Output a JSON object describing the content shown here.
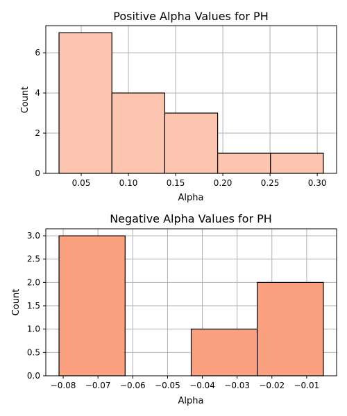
{
  "chart_data": [
    {
      "type": "bar",
      "title": "Positive Alpha Values for PH",
      "xlabel": "Alpha",
      "ylabel": "Count",
      "bin_edges": [
        0.0265,
        0.0825,
        0.1385,
        0.1945,
        0.2505,
        0.3065
      ],
      "values": [
        7,
        4,
        3,
        1,
        1
      ],
      "xlim": [
        0.0125,
        0.3205
      ],
      "ylim": [
        0,
        7.35
      ],
      "xticks": [
        0.05,
        0.1,
        0.15,
        0.2,
        0.25,
        0.3
      ],
      "xtick_labels": [
        "0.05",
        "0.10",
        "0.15",
        "0.20",
        "0.25",
        "0.30"
      ],
      "yticks": [
        0,
        2,
        4,
        6
      ],
      "ytick_labels": [
        "0",
        "2",
        "4",
        "6"
      ],
      "grid": true,
      "bar_color": "#fcc5b0",
      "edge_color": "#000000",
      "grid_color": "#b0b0b0"
    },
    {
      "type": "bar",
      "title": "Negative Alpha Values for PH",
      "xlabel": "Alpha",
      "ylabel": "Count",
      "bin_edges": [
        -0.0812,
        -0.0622,
        -0.0432,
        -0.0242,
        -0.0052
      ],
      "values": [
        3,
        0,
        1,
        2
      ],
      "xlim": [
        -0.085,
        -0.0014
      ],
      "ylim": [
        0,
        3.15
      ],
      "xticks": [
        -0.08,
        -0.07,
        -0.06,
        -0.05,
        -0.04,
        -0.03,
        -0.02,
        -0.01
      ],
      "xtick_labels": [
        "−0.08",
        "−0.07",
        "−0.06",
        "−0.05",
        "−0.04",
        "−0.03",
        "−0.02",
        "−0.01"
      ],
      "yticks": [
        0,
        0.5,
        1.0,
        1.5,
        2.0,
        2.5,
        3.0
      ],
      "ytick_labels": [
        "0.0",
        "0.5",
        "1.0",
        "1.5",
        "2.0",
        "2.5",
        "3.0"
      ],
      "grid": true,
      "bar_color": "#fca180",
      "edge_color": "#000000",
      "grid_color": "#b0b0b0"
    }
  ]
}
